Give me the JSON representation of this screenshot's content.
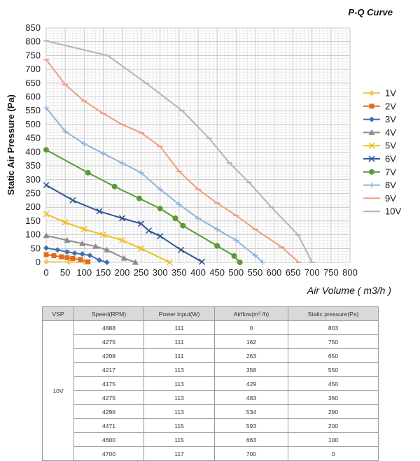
{
  "chart_data": {
    "type": "line",
    "title": "P-Q Curve",
    "xlabel": "Air Volume ( m3/h )",
    "ylabel": "Static Air Pressure  (Pa)",
    "xlim": [
      0,
      800
    ],
    "ylim": [
      0,
      850
    ],
    "xticks": [
      0,
      50,
      100,
      150,
      200,
      250,
      300,
      350,
      400,
      450,
      500,
      550,
      600,
      650,
      700,
      750,
      800
    ],
    "yticks": [
      0,
      50,
      100,
      150,
      200,
      250,
      300,
      350,
      400,
      450,
      500,
      550,
      600,
      650,
      700,
      750,
      800,
      850
    ],
    "grid": true,
    "legend_position": "right",
    "series": [
      {
        "name": "1V",
        "color": "#f2c65a",
        "marker": "diamond",
        "x": [
          0,
          60,
          100
        ],
        "y": [
          2,
          1,
          0
        ]
      },
      {
        "name": "2V",
        "color": "#e06b1f",
        "marker": "square",
        "x": [
          0,
          20,
          40,
          55,
          70,
          90,
          110
        ],
        "y": [
          28,
          24,
          20,
          17,
          14,
          10,
          2
        ]
      },
      {
        "name": "3V",
        "color": "#3f6fb0",
        "marker": "diamond",
        "x": [
          0,
          30,
          55,
          75,
          95,
          115,
          140,
          160
        ],
        "y": [
          52,
          45,
          38,
          33,
          30,
          25,
          8,
          0
        ]
      },
      {
        "name": "4V",
        "color": "#8c8c8c",
        "marker": "triangle",
        "x": [
          0,
          55,
          95,
          130,
          160,
          205,
          235
        ],
        "y": [
          97,
          80,
          68,
          58,
          45,
          15,
          0
        ]
      },
      {
        "name": "5V",
        "color": "#f0bf1a",
        "marker": "x",
        "x": [
          0,
          50,
          100,
          150,
          200,
          250,
          325
        ],
        "y": [
          175,
          145,
          120,
          100,
          80,
          50,
          0
        ]
      },
      {
        "name": "6V",
        "color": "#2c5596",
        "marker": "x",
        "x": [
          0,
          70,
          140,
          200,
          250,
          270,
          300,
          355,
          410
        ],
        "y": [
          280,
          225,
          185,
          160,
          140,
          115,
          95,
          45,
          2
        ]
      },
      {
        "name": "7V",
        "color": "#5a9a37",
        "marker": "circle",
        "x": [
          0,
          110,
          180,
          245,
          300,
          340,
          360,
          450,
          495,
          510
        ],
        "y": [
          408,
          325,
          275,
          232,
          195,
          160,
          133,
          60,
          23,
          0
        ]
      },
      {
        "name": "8V",
        "color": "#8fb3dc",
        "marker": "plus",
        "x": [
          0,
          50,
          100,
          150,
          200,
          250,
          300,
          350,
          400,
          450,
          500,
          550,
          570
        ],
        "y": [
          560,
          475,
          430,
          395,
          360,
          325,
          265,
          210,
          160,
          120,
          80,
          25,
          0
        ]
      },
      {
        "name": "9V",
        "color": "#f39c80",
        "marker": "dash",
        "x": [
          0,
          50,
          100,
          150,
          200,
          250,
          300,
          350,
          400,
          450,
          500,
          550,
          620,
          665
        ],
        "y": [
          735,
          645,
          585,
          540,
          500,
          470,
          420,
          330,
          265,
          215,
          170,
          120,
          55,
          0
        ]
      },
      {
        "name": "10V",
        "color": "#b4b4b4",
        "marker": "dash",
        "x": [
          0,
          162,
          263,
          358,
          429,
          483,
          534,
          593,
          663,
          700
        ],
        "y": [
          803,
          750,
          650,
          550,
          450,
          360,
          290,
          200,
          100,
          0
        ]
      }
    ]
  },
  "table": {
    "headers": [
      "VSP",
      "Speed(RPM)",
      "Power input(W)",
      "Airflow(m³ /h)",
      "Static pressure(Pa)"
    ],
    "vsp_label": "10V",
    "rows": [
      [
        "4888",
        "111",
        "0",
        "803"
      ],
      [
        "4275",
        "111",
        "162",
        "750"
      ],
      [
        "4208",
        "111",
        "263",
        "650"
      ],
      [
        "4217",
        "113",
        "358",
        "550"
      ],
      [
        "4175",
        "113",
        "429",
        "450"
      ],
      [
        "4275",
        "113",
        "483",
        "360"
      ],
      [
        "4296",
        "113",
        "534",
        "290"
      ],
      [
        "4471",
        "115",
        "593",
        "200"
      ],
      [
        "4600",
        "115",
        "663",
        "100"
      ],
      [
        "4700",
        "117",
        "700",
        "0"
      ]
    ]
  }
}
